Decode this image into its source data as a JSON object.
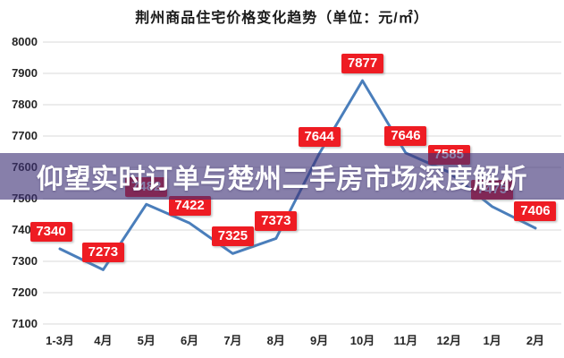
{
  "title": "荆州商品住宅价格变化趋势（单位：元/㎡）",
  "banner": {
    "text": "仰望实时订单与楚州二手房市场深度解析",
    "bg_color": "rgba(62,48,118,0.62)",
    "text_color": "#ffffff"
  },
  "chart_data": {
    "type": "line",
    "title": "荆州商品住宅价格变化趋势（单位：元/㎡）",
    "categories": [
      "1-3月",
      "4月",
      "5月",
      "6月",
      "7月",
      "8月",
      "9月",
      "10月",
      "11月",
      "12月",
      "1月",
      "2月"
    ],
    "values": [
      7340,
      7273,
      7482,
      7422,
      7325,
      7373,
      7644,
      7877,
      7646,
      7585,
      7475,
      7406
    ],
    "data_labels": [
      "7340",
      "7273",
      "7482",
      "7422",
      "7325",
      "7373",
      "7644",
      "7877",
      "7646",
      "7585",
      "7475",
      "7406"
    ],
    "ylim": [
      7100,
      8000
    ],
    "yticks": [
      8000,
      7900,
      7800,
      7700,
      7600,
      7500,
      7400,
      7300,
      7200,
      7100
    ],
    "xlabel": "",
    "ylabel": "",
    "grid": true,
    "legend": "none",
    "line_color": "#4a7ebb",
    "grid_color": "#d9d9d9",
    "label_bg": "#ee1c23",
    "label_text_color": "#ffffff"
  }
}
